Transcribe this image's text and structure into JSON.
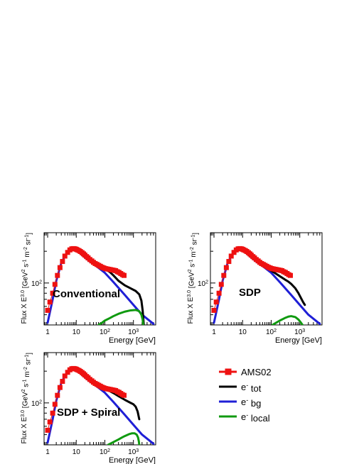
{
  "chart_data": [
    {
      "type": "line",
      "panel_label": "Conventional",
      "xlabel": "Energy [GeV]",
      "ylabel": "Flux X E^3.0 [GeV^2 s^-1 m^-2 sr^-1]",
      "x_scale": "log",
      "y_scale": "log",
      "xlim": [
        0.75,
        6000
      ],
      "ylim": [
        40,
        300
      ],
      "x_ticks": [
        {
          "value": 1,
          "label": "1"
        },
        {
          "value": 10,
          "label": "10"
        },
        {
          "value": 100,
          "label": "10^2"
        },
        {
          "value": 1000,
          "label": "10^3"
        }
      ],
      "y_ticks": [
        {
          "value": 100,
          "label": "10^2"
        }
      ],
      "series": [
        {
          "name": "e^- bg",
          "color": "#1f1fd6",
          "x": [
            1,
            1.5,
            2,
            3,
            5,
            7,
            10,
            15,
            20,
            30,
            50,
            100,
            200,
            500,
            1000,
            2000,
            5000
          ],
          "y": [
            42,
            70,
            105,
            155,
            200,
            215,
            205,
            188,
            175,
            160,
            145,
            125,
            102,
            77,
            62,
            50,
            41
          ]
        },
        {
          "name": "e^- tot",
          "color": "#000000",
          "x": [
            10,
            20,
            50,
            100,
            150,
            200,
            300,
            500,
            800,
            1200,
            1600,
            1900,
            2100,
            2300
          ],
          "y": [
            205,
            176,
            148,
            136,
            127,
            118,
            105,
            95,
            89,
            84,
            78,
            68,
            55,
            40
          ]
        },
        {
          "name": "e^- local",
          "color": "#109a10",
          "x": [
            60,
            80,
            100,
            150,
            200,
            300,
            500,
            800,
            1200,
            1600,
            1900,
            2100,
            2200
          ],
          "y": [
            40,
            42,
            44,
            46.5,
            48.5,
            51,
            53.5,
            55,
            55.5,
            54,
            50,
            45,
            40
          ]
        },
        {
          "name": "AMS02",
          "color": "#ee1111",
          "marker": "square",
          "x": [
            1,
            1.2,
            1.5,
            1.8,
            2.2,
            2.7,
            3.3,
            4,
            5,
            6,
            7,
            8,
            9,
            10,
            11,
            12.5,
            14,
            16,
            18,
            20,
            23,
            26,
            30,
            35,
            40,
            46,
            53,
            61,
            70,
            80,
            92,
            105,
            120,
            138,
            158,
            181,
            208,
            238,
            273,
            313,
            359,
            411,
            470
          ],
          "y": [
            55,
            66,
            80,
            97,
            118,
            140,
            160,
            180,
            195,
            206,
            211,
            212,
            211,
            209,
            206,
            203,
            199,
            194,
            189,
            184,
            178,
            173,
            167,
            162,
            157,
            153,
            150,
            147,
            144,
            141,
            139,
            137,
            136,
            135,
            134,
            133,
            132,
            131,
            128,
            126,
            123,
            120,
            118
          ]
        }
      ]
    },
    {
      "type": "line",
      "panel_label": "SDP",
      "xlabel": "Energy [GeV]",
      "ylabel": "Flux X E^3.0 [GeV^2 s^-1 m^-2 sr^-1]",
      "x_scale": "log",
      "y_scale": "log",
      "xlim": [
        0.75,
        6000
      ],
      "ylim": [
        40,
        300
      ],
      "x_ticks": [
        {
          "value": 1,
          "label": "1"
        },
        {
          "value": 10,
          "label": "10"
        },
        {
          "value": 100,
          "label": "10^2"
        },
        {
          "value": 1000,
          "label": "10^3"
        }
      ],
      "y_ticks": [
        {
          "value": 100,
          "label": "10^2"
        }
      ],
      "series": [
        {
          "name": "e^- bg",
          "color": "#1f1fd6",
          "x": [
            1,
            1.5,
            2,
            3,
            5,
            7,
            10,
            15,
            20,
            30,
            50,
            100,
            200,
            500,
            1000,
            2000,
            5000
          ],
          "y": [
            42,
            70,
            105,
            155,
            200,
            215,
            205,
            188,
            175,
            160,
            145,
            125,
            102,
            77,
            62,
            50,
            41
          ]
        },
        {
          "name": "e^- tot",
          "color": "#000000",
          "x": [
            10,
            20,
            50,
            100,
            150,
            200,
            300,
            400,
            500,
            700,
            900,
            1100,
            1300,
            1500
          ],
          "y": [
            205,
            176,
            148,
            131,
            122,
            116,
            108,
            103,
            98,
            89,
            80,
            72,
            66,
            62
          ]
        },
        {
          "name": "e^- local",
          "color": "#109a10",
          "x": [
            110,
            150,
            200,
            300,
            400,
            500,
            700,
            900,
            1100,
            1250,
            1350,
            1400
          ],
          "y": [
            40,
            42,
            44,
            46.5,
            48,
            48.5,
            47.5,
            45,
            42,
            40,
            38.5,
            37
          ]
        },
        {
          "name": "AMS02",
          "color": "#ee1111",
          "marker": "square",
          "x": [
            1,
            1.2,
            1.5,
            1.8,
            2.2,
            2.7,
            3.3,
            4,
            5,
            6,
            7,
            8,
            9,
            10,
            11,
            12.5,
            14,
            16,
            18,
            20,
            23,
            26,
            30,
            35,
            40,
            46,
            53,
            61,
            70,
            80,
            92,
            105,
            120,
            138,
            158,
            181,
            208,
            238,
            273,
            313,
            359,
            411,
            470
          ],
          "y": [
            55,
            66,
            80,
            97,
            118,
            140,
            160,
            180,
            195,
            206,
            211,
            212,
            211,
            209,
            206,
            203,
            199,
            194,
            189,
            184,
            178,
            173,
            167,
            162,
            157,
            153,
            150,
            147,
            144,
            141,
            139,
            137,
            136,
            135,
            134,
            133,
            132,
            131,
            128,
            126,
            123,
            120,
            118
          ]
        }
      ]
    },
    {
      "type": "line",
      "panel_label": "SDP + Spiral",
      "xlabel": "Energy [GeV]",
      "ylabel": "Flux X E^3.0 [GeV^2 s^-1 m^-2 sr^-1]",
      "x_scale": "log",
      "y_scale": "log",
      "xlim": [
        0.75,
        6000
      ],
      "ylim": [
        40,
        300
      ],
      "x_ticks": [
        {
          "value": 1,
          "label": "1"
        },
        {
          "value": 10,
          "label": "10"
        },
        {
          "value": 100,
          "label": "10^2"
        },
        {
          "value": 1000,
          "label": "10^3"
        }
      ],
      "y_ticks": [
        {
          "value": 100,
          "label": "10^2"
        }
      ],
      "series": [
        {
          "name": "e^- bg",
          "color": "#1f1fd6",
          "x": [
            1,
            1.5,
            2,
            3,
            5,
            7,
            10,
            15,
            20,
            30,
            50,
            100,
            200,
            500,
            1000,
            2000,
            5000
          ],
          "y": [
            42,
            70,
            105,
            155,
            200,
            215,
            205,
            188,
            175,
            160,
            145,
            125,
            102,
            77,
            62,
            50,
            41
          ]
        },
        {
          "name": "e^- tot",
          "color": "#000000",
          "x": [
            10,
            20,
            50,
            100,
            150,
            200,
            300,
            500,
            800,
            1000,
            1200,
            1400,
            1600
          ],
          "y": [
            205,
            176,
            148,
            136,
            129,
            124,
            116,
            107,
            100,
            97,
            92,
            83,
            70
          ]
        },
        {
          "name": "e^- local",
          "color": "#109a10",
          "x": [
            130,
            200,
            300,
            400,
            500,
            700,
            900,
            1100,
            1300,
            1450,
            1550,
            1600
          ],
          "y": [
            40,
            42.5,
            45,
            47,
            48.5,
            50.5,
            51.5,
            51.5,
            50,
            47,
            43,
            40
          ]
        },
        {
          "name": "AMS02",
          "color": "#ee1111",
          "marker": "square",
          "x": [
            1,
            1.2,
            1.5,
            1.8,
            2.2,
            2.7,
            3.3,
            4,
            5,
            6,
            7,
            8,
            9,
            10,
            11,
            12.5,
            14,
            16,
            18,
            20,
            23,
            26,
            30,
            35,
            40,
            46,
            53,
            61,
            70,
            80,
            92,
            105,
            120,
            138,
            158,
            181,
            208,
            238,
            273,
            313,
            359,
            411,
            470
          ],
          "y": [
            55,
            66,
            80,
            97,
            118,
            140,
            160,
            180,
            195,
            206,
            211,
            212,
            211,
            209,
            206,
            203,
            199,
            194,
            189,
            184,
            178,
            173,
            167,
            162,
            157,
            153,
            150,
            147,
            144,
            141,
            139,
            137,
            136,
            135,
            134,
            133,
            132,
            131,
            128,
            126,
            123,
            120,
            118
          ]
        }
      ]
    }
  ],
  "legend": {
    "entries": [
      {
        "label": "AMS02",
        "color": "#ee1111",
        "marker": "square"
      },
      {
        "label": "e^- tot",
        "color": "#000000"
      },
      {
        "label": "e^- bg",
        "color": "#1f1fd6"
      },
      {
        "label": "e^- local",
        "color": "#109a10"
      }
    ]
  }
}
